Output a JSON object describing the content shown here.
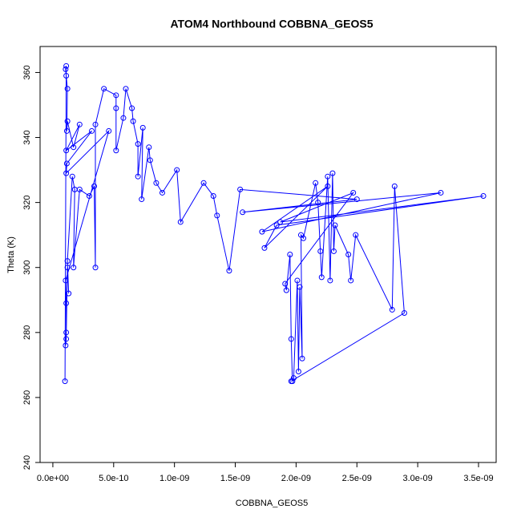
{
  "chart_data": {
    "type": "line",
    "title": "ATOM4 Northbound COBBNA_GEOS5",
    "x_label": "COBBNA_GEOS5",
    "y_label": "Theta (K)",
    "color": "#0000ff",
    "markers": "open-circle",
    "x": [
      1e-10,
      1.1e-10,
      1.05e-10,
      1.1e-10,
      1.2e-10,
      1.15e-10,
      1.2e-10,
      1.7e-10,
      2.2e-10,
      1.1e-10,
      3.2e-10,
      1.15e-10,
      1.1e-10,
      4.6e-10,
      1.05e-10,
      1.1e-10,
      1.1e-10,
      1.05e-10,
      1.1e-10,
      1.2e-10,
      1.3e-10,
      1.2e-10,
      1.6e-10,
      1.8e-10,
      1.7e-10,
      2.2e-10,
      3e-10,
      3.4e-10,
      3.5e-10,
      3.5e-10,
      4.2e-10,
      5.2e-10,
      5.2e-10,
      5.2e-10,
      5.8e-10,
      6e-10,
      6.5e-10,
      6.6e-10,
      7e-10,
      7e-10,
      7.4e-10,
      7.3e-10,
      7.9e-10,
      8e-10,
      8.5e-10,
      9e-10,
      1.02e-09,
      1.05e-09,
      1.24e-09,
      1.32e-09,
      1.35e-09,
      1.45e-09,
      1.54e-09,
      2.5e-09,
      1.56e-09,
      3.19e-09,
      1.72e-09,
      2.26e-09,
      1.74e-09,
      1.84e-09,
      3.54e-09,
      1.87e-09,
      2.47e-09,
      1.91e-09,
      1.92e-09,
      1.95e-09,
      1.96e-09,
      1.97e-09,
      1.98e-09,
      2.01e-09,
      2.02e-09,
      2.03e-09,
      2.05e-09,
      2.04e-09,
      2.06e-09,
      2.16e-09,
      2.18e-09,
      2.2e-09,
      2.21e-09,
      2.26e-09,
      2.28e-09,
      2.3e-09,
      2.31e-09,
      2.32e-09,
      2.43e-09,
      2.45e-09,
      2.49e-09,
      2.79e-09,
      2.81e-09,
      2.89e-09,
      1.96e-09
    ],
    "series": [
      {
        "name": "COBBNA_GEOS5",
        "color": "#0000ff",
        "values": [
          265,
          362,
          361,
          359,
          355,
          342,
          345,
          337,
          344,
          336,
          342,
          332,
          329,
          342,
          296,
          289,
          280,
          276,
          278,
          300,
          292,
          302,
          328,
          324,
          300,
          324,
          322,
          325,
          300,
          344,
          355,
          353,
          349,
          336,
          346,
          355,
          349,
          345,
          338,
          328,
          343,
          321,
          337,
          333,
          326,
          323,
          330,
          314,
          326,
          322,
          316,
          299,
          324,
          321,
          317,
          323,
          311,
          325,
          306,
          313,
          322,
          314,
          323,
          295,
          293,
          304,
          278,
          265,
          266,
          296,
          268,
          294,
          272,
          310,
          309,
          326,
          320,
          305,
          297,
          328,
          296,
          329,
          305,
          313,
          304,
          296,
          310,
          287,
          325,
          286,
          265
        ]
      }
    ],
    "xlim": [
      -1.05e-10,
      3.645e-09
    ],
    "ylim": [
      240,
      368
    ],
    "xticks": [
      {
        "value": 0,
        "label": "0.0e+00"
      },
      {
        "value": 5e-10,
        "label": "5.0e-10"
      },
      {
        "value": 1e-09,
        "label": "1.0e-09"
      },
      {
        "value": 1.5e-09,
        "label": "1.5e-09"
      },
      {
        "value": 2e-09,
        "label": "2.0e-09"
      },
      {
        "value": 2.5e-09,
        "label": "2.5e-09"
      },
      {
        "value": 3e-09,
        "label": "3.0e-09"
      },
      {
        "value": 3.5e-09,
        "label": "3.5e-09"
      }
    ],
    "yticks": [
      240,
      260,
      280,
      300,
      320,
      340,
      360
    ]
  }
}
